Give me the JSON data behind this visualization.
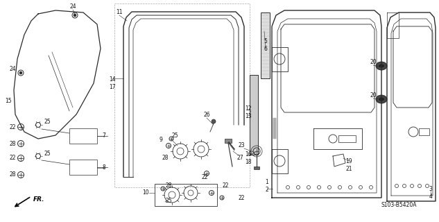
{
  "bg_color": "#ffffff",
  "fig_width": 6.33,
  "fig_height": 3.2,
  "dpi": 100,
  "diagram_code": "S103-B5420A",
  "line_color": "#2a2a2a",
  "text_color": "#111111"
}
